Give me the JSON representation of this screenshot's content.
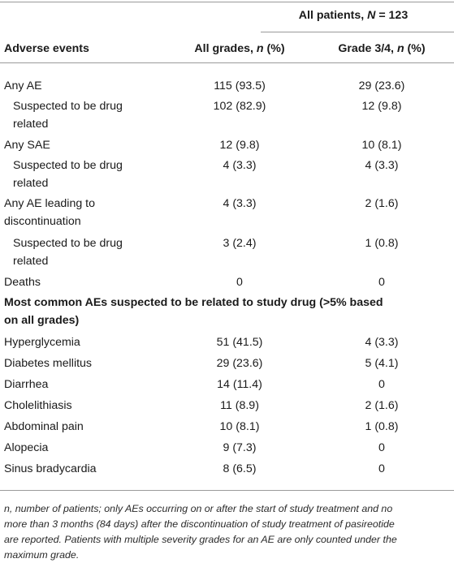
{
  "header": {
    "group_prefix": "All patients, ",
    "group_n": "N",
    "group_suffix": " = 123",
    "col1": "Adverse events",
    "col2_prefix": "All grades, ",
    "col2_n": "n",
    "col2_suffix": " (%)",
    "col3_prefix": "Grade 3/4, ",
    "col3_n": "n",
    "col3_suffix": " (%)"
  },
  "rows": [
    {
      "label": "Any AE",
      "all": "115 (93.5)",
      "g34": "29 (23.6)"
    },
    {
      "label_1": "Suspected to be drug",
      "label_2": "related",
      "all": "102 (82.9)",
      "g34": "12 (9.8)"
    },
    {
      "label": "Any SAE",
      "all": "12 (9.8)",
      "g34": "10 (8.1)"
    },
    {
      "label_1": "Suspected to be drug",
      "label_2": "related",
      "all": "4 (3.3)",
      "g34": "4 (3.3)"
    },
    {
      "label_1": "Any AE leading to",
      "label_2": "discontinuation",
      "all": "4 (3.3)",
      "g34": "2 (1.6)"
    },
    {
      "label_1": "Suspected to be drug",
      "label_2": "related",
      "all": "3 (2.4)",
      "g34": "1 (0.8)"
    },
    {
      "label": "Deaths",
      "all": "0",
      "g34": "0"
    }
  ],
  "section_header": {
    "line1": "Most common AEs suspected to be related to study drug (>5% based",
    "line2": "on all grades)"
  },
  "common_rows": [
    {
      "label": "Hyperglycemia",
      "all": "51 (41.5)",
      "g34": "4 (3.3)"
    },
    {
      "label": "Diabetes mellitus",
      "all": "29 (23.6)",
      "g34": "5 (4.1)"
    },
    {
      "label": "Diarrhea",
      "all": "14 (11.4)",
      "g34": "0"
    },
    {
      "label": "Cholelithiasis",
      "all": "11 (8.9)",
      "g34": "2 (1.6)"
    },
    {
      "label": "Abdominal pain",
      "all": "10 (8.1)",
      "g34": "1 (0.8)"
    },
    {
      "label": "Alopecia",
      "all": "9 (7.3)",
      "g34": "0"
    },
    {
      "label": "Sinus bradycardia",
      "all": "8 (6.5)",
      "g34": "0"
    }
  ],
  "footnote": {
    "line1": "n, number of patients; only AEs occurring on or after the start of study treatment and no",
    "line2": "more than 3 months (84 days) after the discontinuation of study treatment of pasireotide",
    "line3": "are reported. Patients with multiple severity grades for an AE are only counted under the",
    "line4": "maximum grade."
  }
}
